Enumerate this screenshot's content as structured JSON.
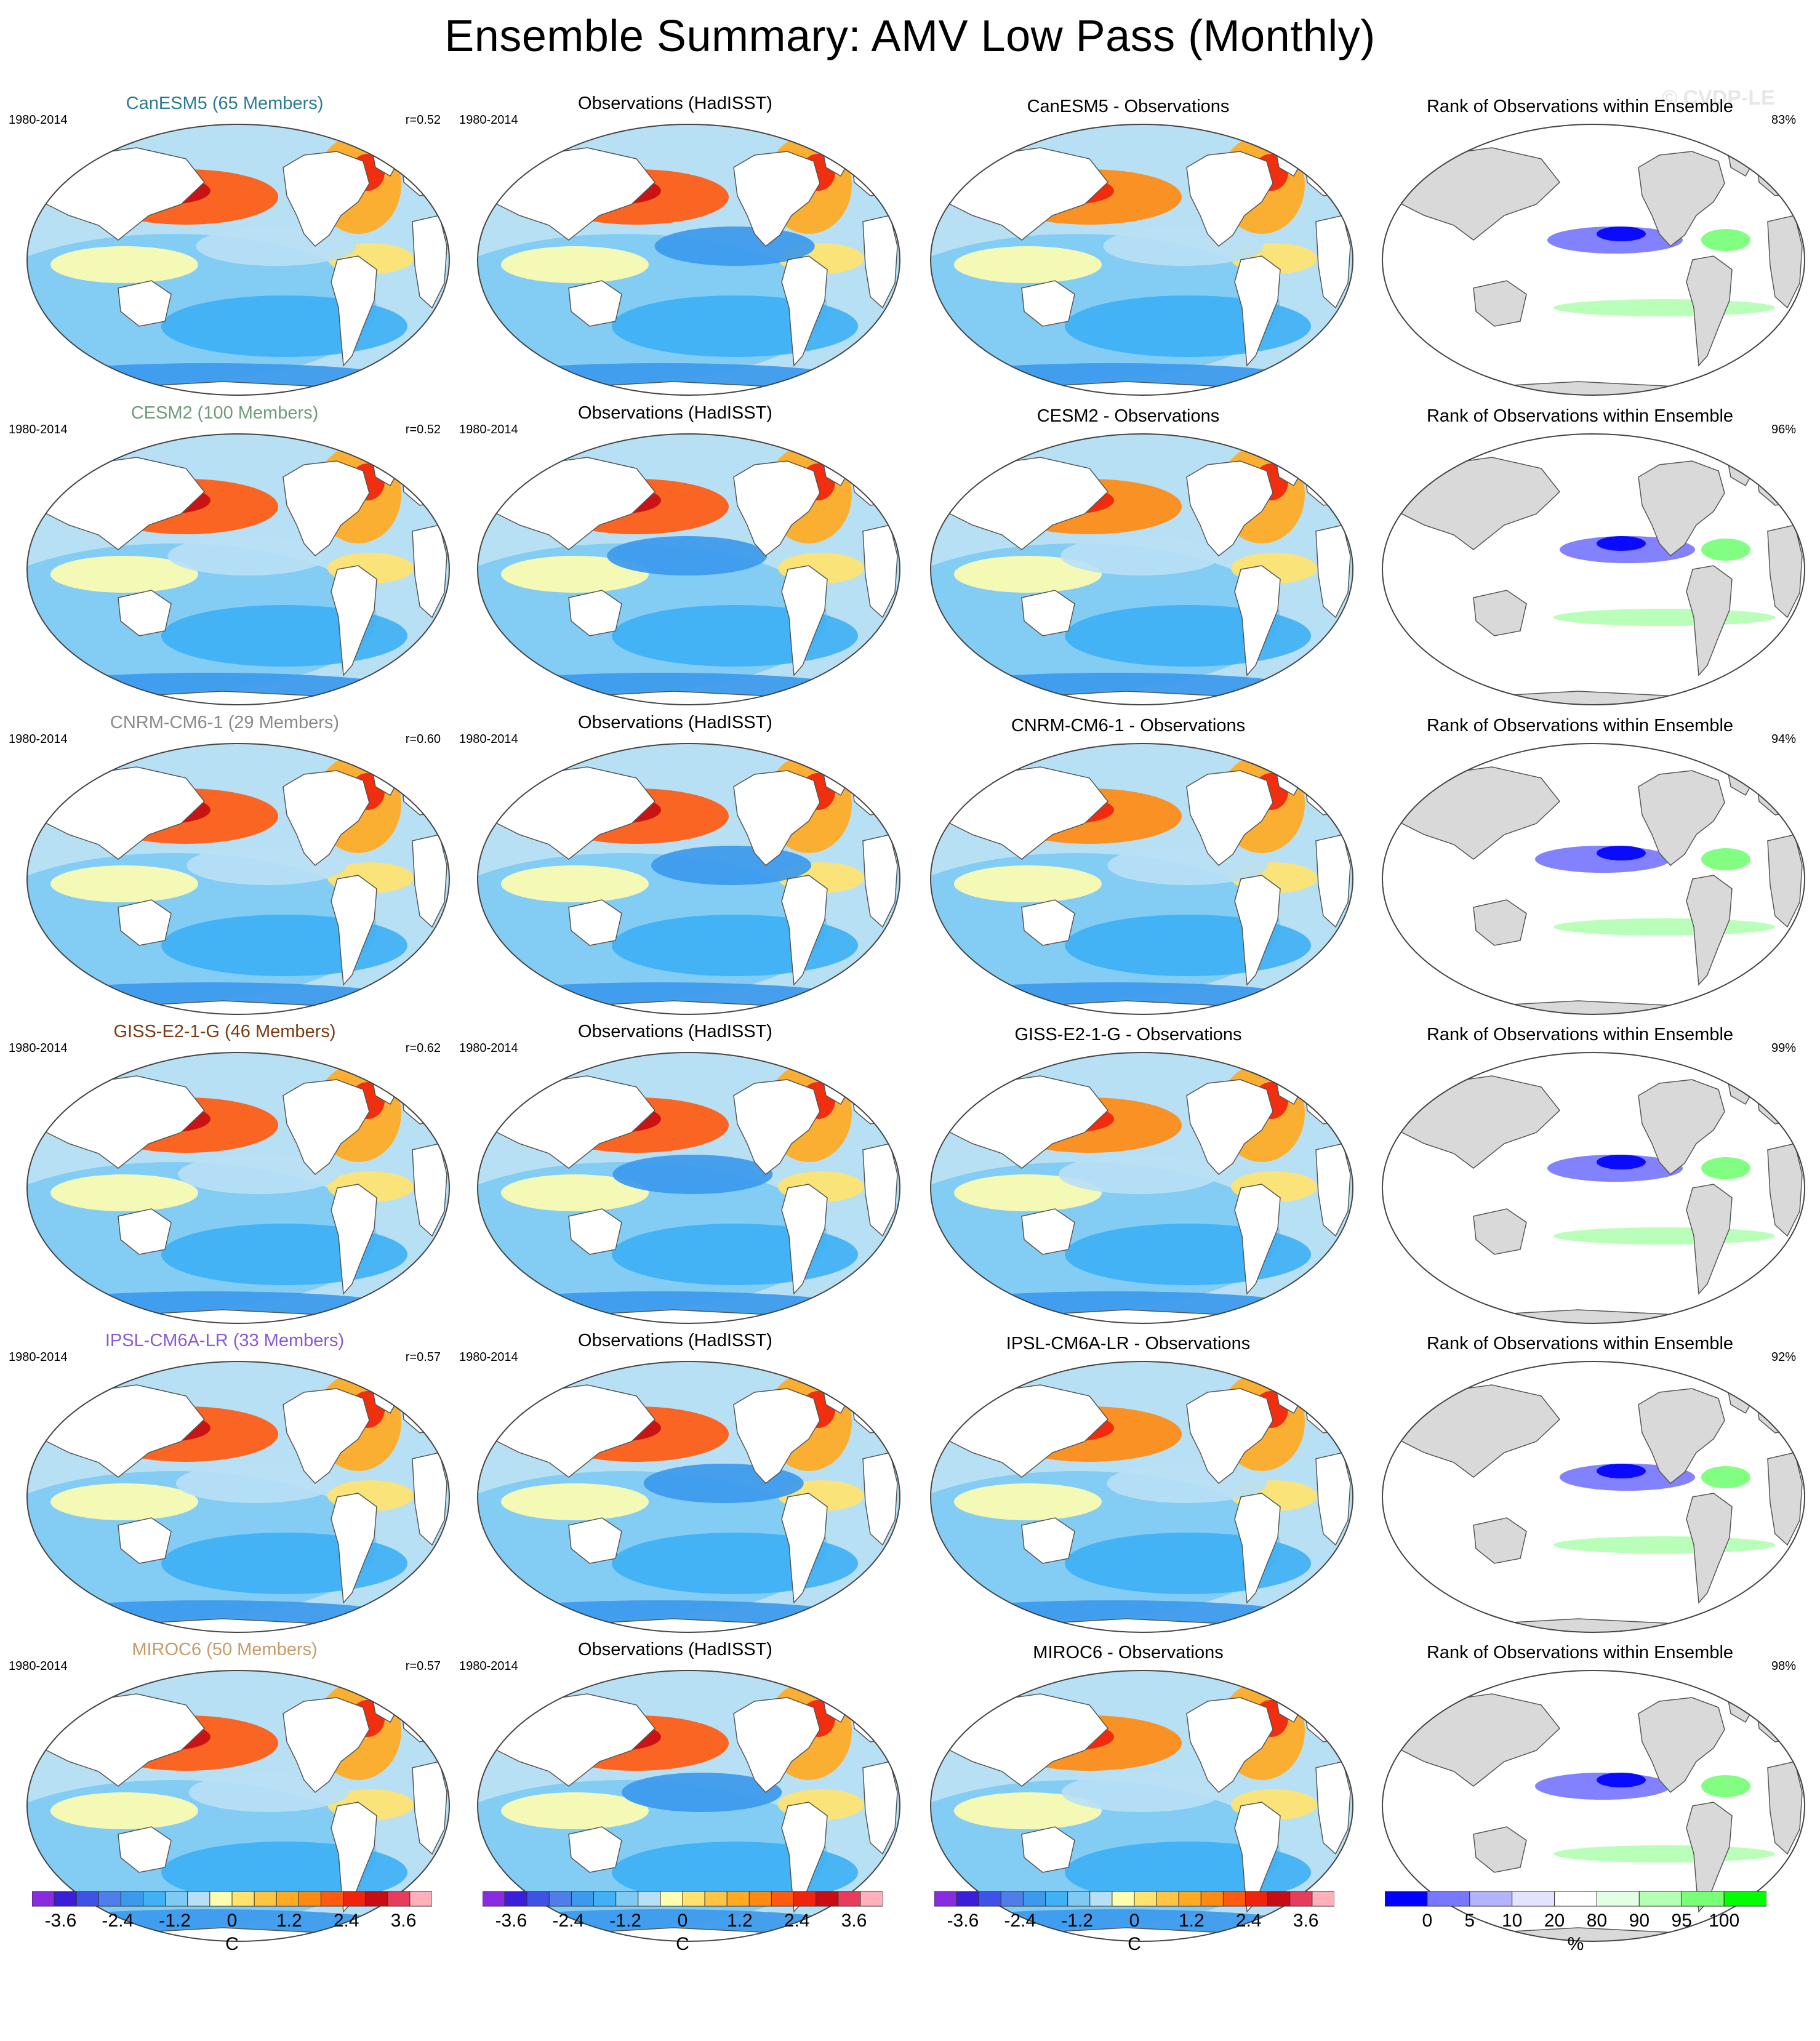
{
  "title": "Ensemble Summary: AMV Low Pass (Monthly)",
  "watermark": "© CVDP-LE",
  "chart_data": {
    "type": "heatmap",
    "title": "Ensemble Summary: AMV Low Pass (Monthly)",
    "rows": [
      {
        "model": "CanESM5",
        "model_title": "CanESM5 (65 Members)",
        "title_color": "#2a7a92",
        "period": "1980-2014",
        "pattern_corr": "r=0.52",
        "obs_title": "Observations (HadISST)",
        "obs_period": "1980-2014",
        "diff_title": "CanESM5 - Observations",
        "rank_title": "Rank of Observations within Ensemble",
        "rank_pct": "83%"
      },
      {
        "model": "CESM2",
        "model_title": "CESM2 (100 Members)",
        "title_color": "#6f9b7b",
        "period": "1980-2014",
        "pattern_corr": "r=0.52",
        "obs_title": "Observations (HadISST)",
        "obs_period": "1980-2014",
        "diff_title": "CESM2 - Observations",
        "rank_title": "Rank of Observations within Ensemble",
        "rank_pct": "96%"
      },
      {
        "model": "CNRM-CM6-1",
        "model_title": "CNRM-CM6-1 (29 Members)",
        "title_color": "#8a8a8a",
        "period": "1980-2014",
        "pattern_corr": "r=0.60",
        "obs_title": "Observations (HadISST)",
        "obs_period": "1980-2014",
        "diff_title": "CNRM-CM6-1 - Observations",
        "rank_title": "Rank of Observations within Ensemble",
        "rank_pct": "94%"
      },
      {
        "model": "GISS-E2-1-G",
        "model_title": "GISS-E2-1-G (46 Members)",
        "title_color": "#7a3a12",
        "period": "1980-2014",
        "pattern_corr": "r=0.62",
        "obs_title": "Observations (HadISST)",
        "obs_period": "1980-2014",
        "diff_title": "GISS-E2-1-G - Observations",
        "rank_title": "Rank of Observations within Ensemble",
        "rank_pct": "99%"
      },
      {
        "model": "IPSL-CM6A-LR",
        "model_title": "IPSL-CM6A-LR (33 Members)",
        "title_color": "#8a5ad0",
        "period": "1980-2014",
        "pattern_corr": "r=0.57",
        "obs_title": "Observations (HadISST)",
        "obs_period": "1980-2014",
        "diff_title": "IPSL-CM6A-LR - Observations",
        "rank_title": "Rank of Observations within Ensemble",
        "rank_pct": "92%"
      },
      {
        "model": "MIROC6",
        "model_title": "MIROC6 (50 Members)",
        "title_color": "#c89a6a",
        "period": "1980-2014",
        "pattern_corr": "r=0.57",
        "obs_title": "Observations (HadISST)",
        "obs_period": "1980-2014",
        "diff_title": "MIROC6 - Observations",
        "rank_title": "Rank of Observations within Ensemble",
        "rank_pct": "98%"
      }
    ],
    "sst_colorbar": {
      "unit": "C",
      "range": [
        -4.2,
        4.2
      ],
      "tick_labels": [
        "-3.6",
        "-2.4",
        "-1.2",
        "0",
        "1.2",
        "2.4",
        "3.6"
      ],
      "tick_values": [
        -3.6,
        -2.4,
        -1.2,
        0,
        1.2,
        2.4,
        3.6
      ],
      "colors": [
        "#8a2be2",
        "#3a1ed8",
        "#3f52e6",
        "#4f7ee8",
        "#3c99ec",
        "#3fb1f4",
        "#7ecaf3",
        "#b8e0f4",
        "#fffdb0",
        "#ffe36e",
        "#ffc441",
        "#ffaa22",
        "#ff8a12",
        "#ff5a10",
        "#f0240c",
        "#c80c14",
        "#e83c5c",
        "#ffb0b8"
      ]
    },
    "rank_colorbar": {
      "unit": "%",
      "tick_labels": [
        "0",
        "5",
        "10",
        "20",
        "80",
        "90",
        "95",
        "100"
      ],
      "boundaries": [
        0,
        5,
        10,
        20,
        80,
        90,
        95,
        100
      ],
      "colors": [
        "#0000ff",
        "#7777ff",
        "#b3b3ff",
        "#e3e3ff",
        "#ffffff",
        "#e3ffe3",
        "#b3ffb3",
        "#77ff77",
        "#00ff00"
      ]
    }
  }
}
